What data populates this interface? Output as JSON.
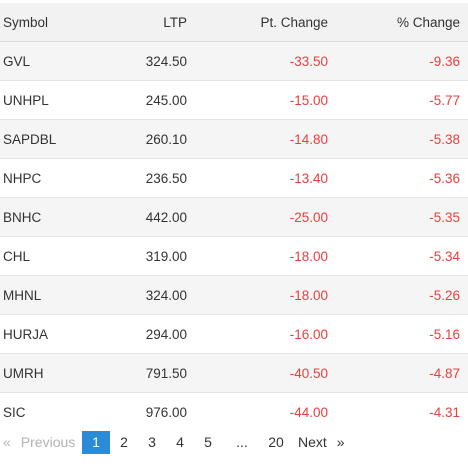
{
  "table": {
    "headers": {
      "symbol": "Symbol",
      "ltp": "LTP",
      "pt_change": "Pt. Change",
      "pct_change": "% Change"
    },
    "rows": [
      {
        "symbol": "GVL",
        "ltp": "324.50",
        "pt_change": "-33.50",
        "pct_change": "-9.36"
      },
      {
        "symbol": "UNHPL",
        "ltp": "245.00",
        "pt_change": "-15.00",
        "pct_change": "-5.77"
      },
      {
        "symbol": "SAPDBL",
        "ltp": "260.10",
        "pt_change": "-14.80",
        "pct_change": "-5.38"
      },
      {
        "symbol": "NHPC",
        "ltp": "236.50",
        "pt_change": "-13.40",
        "pct_change": "-5.36"
      },
      {
        "symbol": "BNHC",
        "ltp": "442.00",
        "pt_change": "-25.00",
        "pct_change": "-5.35"
      },
      {
        "symbol": "CHL",
        "ltp": "319.00",
        "pt_change": "-18.00",
        "pct_change": "-5.34"
      },
      {
        "symbol": "MHNL",
        "ltp": "324.00",
        "pt_change": "-18.00",
        "pct_change": "-5.26"
      },
      {
        "symbol": "HURJA",
        "ltp": "294.00",
        "pt_change": "-16.00",
        "pct_change": "-5.16"
      },
      {
        "symbol": "UMRH",
        "ltp": "791.50",
        "pt_change": "-40.50",
        "pct_change": "-4.87"
      },
      {
        "symbol": "SIC",
        "ltp": "976.00",
        "pt_change": "-44.00",
        "pct_change": "-4.31"
      }
    ],
    "negative_color": "#e8403c"
  },
  "pagination": {
    "prev_arrow": "«",
    "prev_label": "Previous",
    "pages": [
      "1",
      "2",
      "3",
      "4",
      "5"
    ],
    "ellipsis": "...",
    "last_page": "20",
    "next_label": "Next",
    "next_arrow": "»",
    "current_page": "1",
    "active_color": "#2b8bd6"
  }
}
